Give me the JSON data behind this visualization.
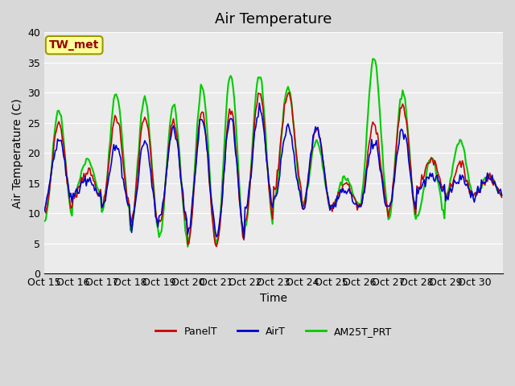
{
  "title": "Air Temperature",
  "ylabel": "Air Temperature (C)",
  "xlabel": "Time",
  "annotation": "TW_met",
  "ylim": [
    0,
    40
  ],
  "yticks": [
    0,
    5,
    10,
    15,
    20,
    25,
    30,
    35,
    40
  ],
  "xtick_labels": [
    "Oct 15",
    "Oct 16",
    "Oct 17",
    "Oct 18",
    "Oct 19",
    "Oct 20",
    "Oct 21",
    "Oct 22",
    "Oct 23",
    "Oct 24",
    "Oct 25",
    "Oct 26",
    "Oct 27",
    "Oct 28",
    "Oct 29",
    "Oct 30"
  ],
  "series": {
    "PanelT": {
      "color": "#cc0000",
      "lw": 1.2
    },
    "AirT": {
      "color": "#0000cc",
      "lw": 1.2
    },
    "AM25T_PRT": {
      "color": "#00cc00",
      "lw": 1.5
    }
  },
  "fig_bg": "#d8d8d8",
  "plot_bg": "#ebebeb",
  "annotation_box_color": "#ffff99",
  "annotation_text_color": "#990000",
  "annotation_border_color": "#999900",
  "title_fontsize": 13,
  "axis_label_fontsize": 10,
  "tick_fontsize": 9,
  "legend_fontsize": 9,
  "panel_peaks": [
    25,
    17,
    26,
    26,
    25,
    27,
    27,
    30,
    30,
    24,
    15,
    25,
    28,
    19,
    18,
    16
  ],
  "panel_troughs": [
    10,
    13,
    11,
    8,
    8,
    5,
    5,
    9,
    14,
    11,
    11,
    11,
    10,
    14,
    13,
    13
  ],
  "air_peaks": [
    22,
    16,
    21,
    22,
    24,
    26,
    26,
    27,
    24,
    24,
    14,
    22,
    24,
    16,
    16,
    16
  ],
  "air_troughs": [
    12,
    13,
    11,
    8,
    9,
    7,
    6,
    11,
    12,
    11,
    11,
    11,
    11,
    14,
    13,
    13
  ],
  "am25_peaks": [
    27,
    19,
    30,
    29,
    28,
    31,
    33,
    33,
    31,
    22,
    16,
    36,
    30,
    19,
    22,
    16
  ],
  "am25_troughs": [
    9,
    13,
    10,
    7,
    6,
    5,
    5,
    8,
    12,
    11,
    11,
    11,
    9,
    10,
    13,
    13
  ]
}
